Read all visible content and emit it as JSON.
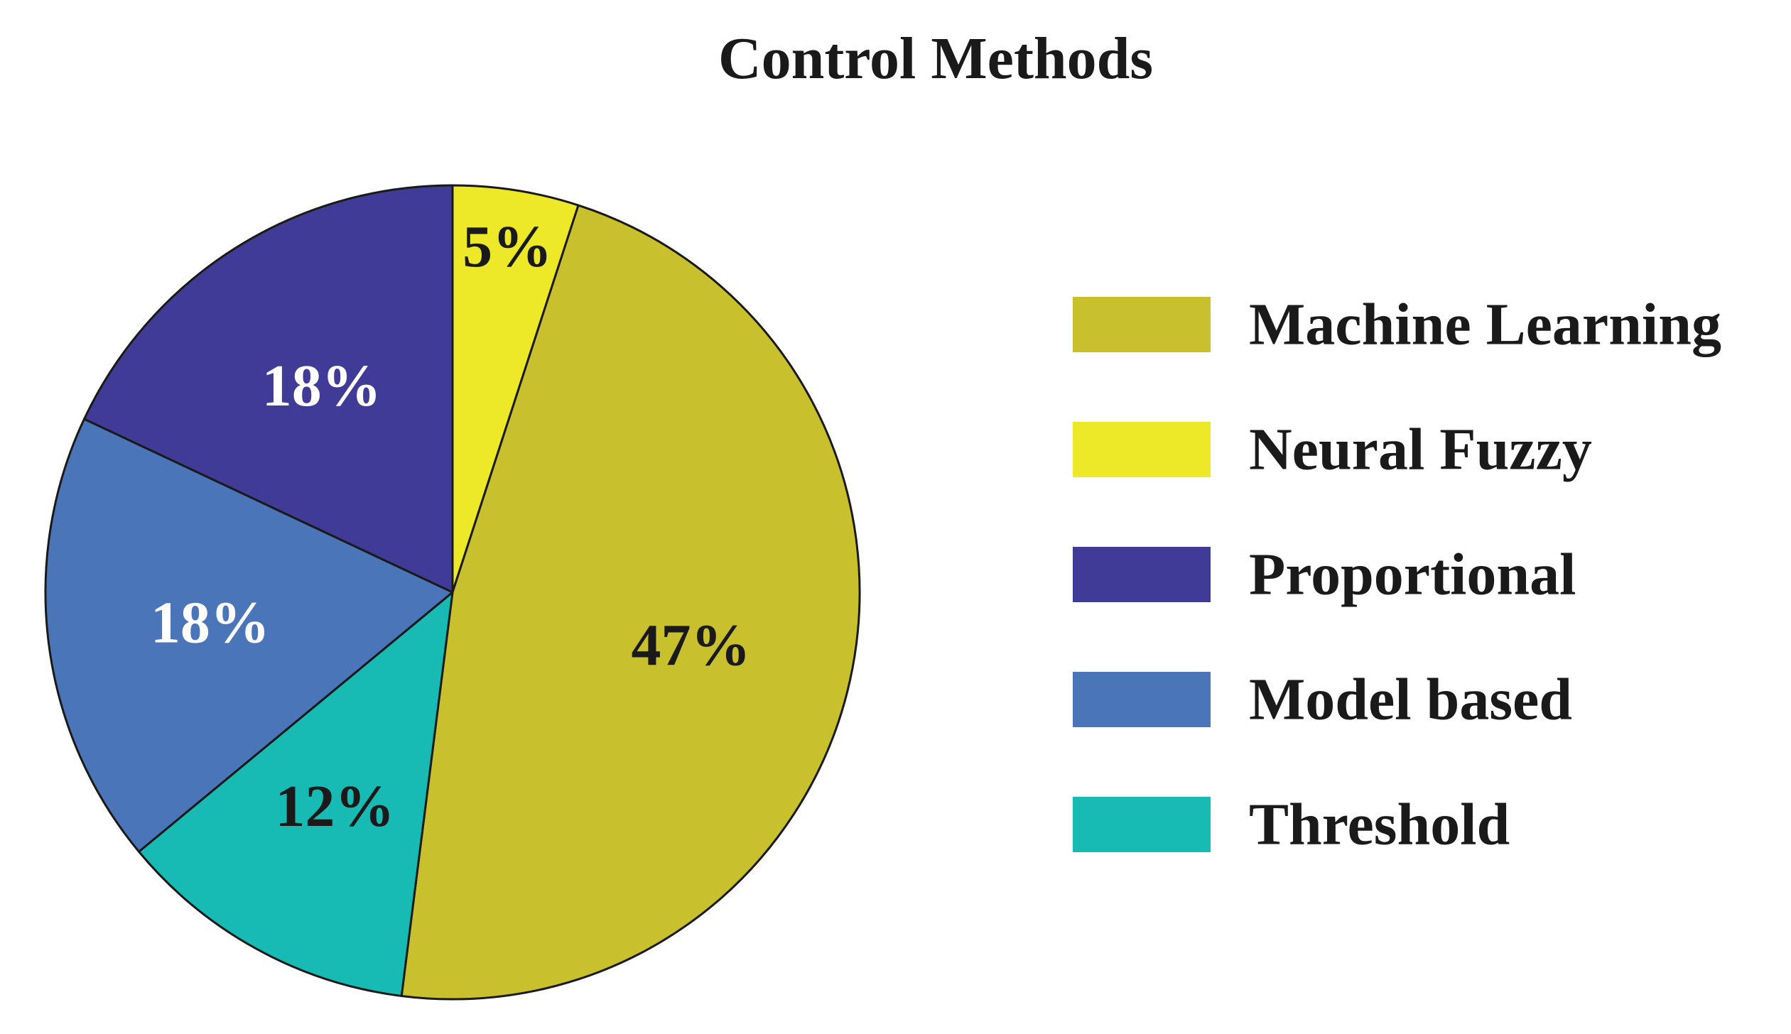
{
  "chart_data": {
    "type": "pie",
    "title": "Control Methods",
    "legend_position": "right",
    "slices": [
      {
        "label": "Neural Fuzzy",
        "value": 5,
        "value_label": "5%",
        "color": "#EDE828",
        "label_color": "#1a1a1a"
      },
      {
        "label": "Machine Learning",
        "value": 47,
        "value_label": "47%",
        "color": "#C9C02E",
        "label_color": "#1a1a1a"
      },
      {
        "label": "Threshold",
        "value": 12,
        "value_label": "12%",
        "color": "#17BBB4",
        "label_color": "#1a1a1a"
      },
      {
        "label": "Model based",
        "value": 18,
        "value_label": "18%",
        "color": "#4A75B9",
        "label_color": "#ffffff"
      },
      {
        "label": "Proportional",
        "value": 18,
        "value_label": "18%",
        "color": "#3F3B96",
        "label_color": "#ffffff"
      }
    ],
    "legend": [
      {
        "label": "Machine Learning",
        "color": "#C9C02E"
      },
      {
        "label": "Neural Fuzzy",
        "color": "#EDE828"
      },
      {
        "label": "Proportional",
        "color": "#3F3B96"
      },
      {
        "label": "Model based",
        "color": "#4A75B9"
      },
      {
        "label": "Threshold",
        "color": "#17BBB4"
      }
    ]
  }
}
